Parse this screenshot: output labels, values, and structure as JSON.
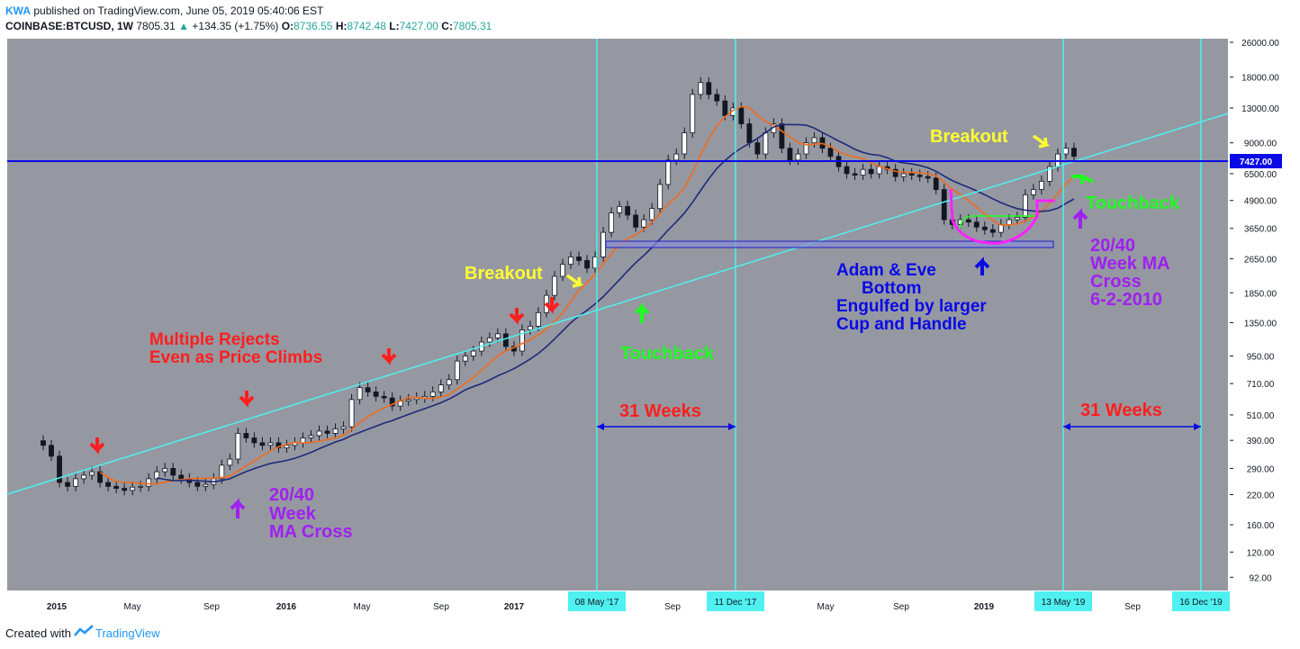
{
  "header": {
    "author": "KWA",
    "published": "published on TradingView.com, June 05, 2019 05:40:06 EST",
    "symbol": "COINBASE:BTCUSD, 1W",
    "last": "7805.31",
    "change": "+134.35 (+1.75%)",
    "o_label": "O:",
    "o_value": "8736.55",
    "h_label": "H:",
    "h_value": "8742.48",
    "l_label": "L:",
    "l_value": "7427.00",
    "c_label": "C:",
    "c_value": "7805.31"
  },
  "footer": {
    "created_with": "Created with",
    "brand": "TradingView"
  },
  "colors": {
    "background": "#9598a1",
    "cyan": "#4ff0f0",
    "blue": "#0a0ae6",
    "red": "#ff1e1e",
    "green": "#1eff1e",
    "yellow": "#ffff32",
    "purple": "#a020f0",
    "magenta": "#ff20ff",
    "ma20": "#f26b1d",
    "ma40": "#1f2a7a",
    "up_candle": "#26a69a",
    "down_candle": "#ef5350"
  },
  "chart_data": {
    "type": "candlestick",
    "scale": "log",
    "ylim": [
      80,
      27000
    ],
    "y_ticks": [
      "26000.00",
      "18000.00",
      "13000.00",
      "9000.00",
      "6500.00",
      "4900.00",
      "3650.00",
      "2650.00",
      "1850.00",
      "1350.00",
      "950.00",
      "710.00",
      "510.00",
      "390.00",
      "290.00",
      "220.00",
      "160.00",
      "120.00",
      "92.00"
    ],
    "x_ticks": [
      "2015",
      "May",
      "Sep",
      "2016",
      "May",
      "Sep",
      "2017",
      "Sep",
      "May",
      "Sep",
      "2019",
      "Sep"
    ],
    "date_labels": [
      "08 May '17",
      "11 Dec '17",
      "13 May '19",
      "16 Dec '19"
    ],
    "price_label": "7427.00",
    "price_line": 7427,
    "series_closes": [
      370,
      330,
      250,
      240,
      260,
      270,
      280,
      250,
      240,
      235,
      230,
      238,
      240,
      260,
      280,
      290,
      270,
      260,
      250,
      240,
      245,
      260,
      300,
      320,
      420,
      400,
      380,
      370,
      380,
      360,
      370,
      380,
      400,
      410,
      430,
      420,
      440,
      450,
      600,
      680,
      650,
      620,
      610,
      560,
      590,
      600,
      610,
      620,
      650,
      700,
      740,
      900,
      950,
      1000,
      1100,
      1150,
      1200,
      1050,
      1000,
      1250,
      1300,
      1500,
      1800,
      2200,
      2500,
      2700,
      2600,
      2400,
      2700,
      3500,
      4300,
      4600,
      4200,
      3700,
      4000,
      4500,
      5800,
      7500,
      8000,
      10000,
      15000,
      17000,
      15000,
      14000,
      12000,
      13000,
      11000,
      9000,
      8000,
      10000,
      11000,
      8500,
      7500,
      8000,
      9000,
      9500,
      8500,
      7800,
      7000,
      6500,
      6400,
      6800,
      6500,
      7000,
      6800,
      6300,
      6500,
      6400,
      6300,
      6200,
      5500,
      4000,
      3800,
      4000,
      3900,
      3700,
      3600,
      3500,
      3800,
      4000,
      4100,
      5200,
      5500,
      6000,
      7000,
      8000,
      8500,
      7805
    ],
    "annotations": [
      {
        "label": "Multiple Rejects",
        "color": "red"
      },
      {
        "label": "Even as Price Climbs",
        "color": "red"
      },
      {
        "label": "20/40",
        "color": "purple"
      },
      {
        "label": "Week",
        "color": "purple"
      },
      {
        "label": "MA Cross",
        "color": "purple"
      },
      {
        "label": "Breakout",
        "color": "yellow"
      },
      {
        "label": "Touchback",
        "color": "green"
      },
      {
        "label": "31 Weeks",
        "color": "red"
      },
      {
        "label": "Adam & Eve",
        "color": "blue"
      },
      {
        "label": "Bottom",
        "color": "blue"
      },
      {
        "label": "Engulfed by larger",
        "color": "blue"
      },
      {
        "label": "Cup and Handle",
        "color": "blue"
      },
      {
        "label": "20/40",
        "color": "purple"
      },
      {
        "label": "Week MA",
        "color": "purple"
      },
      {
        "label": "Cross",
        "color": "purple"
      },
      {
        "label": "6-2-2010",
        "color": "purple"
      }
    ],
    "right_annotations": {
      "breakout": "Breakout",
      "touchback": "Touchback",
      "weeks": "31 Weeks"
    }
  }
}
